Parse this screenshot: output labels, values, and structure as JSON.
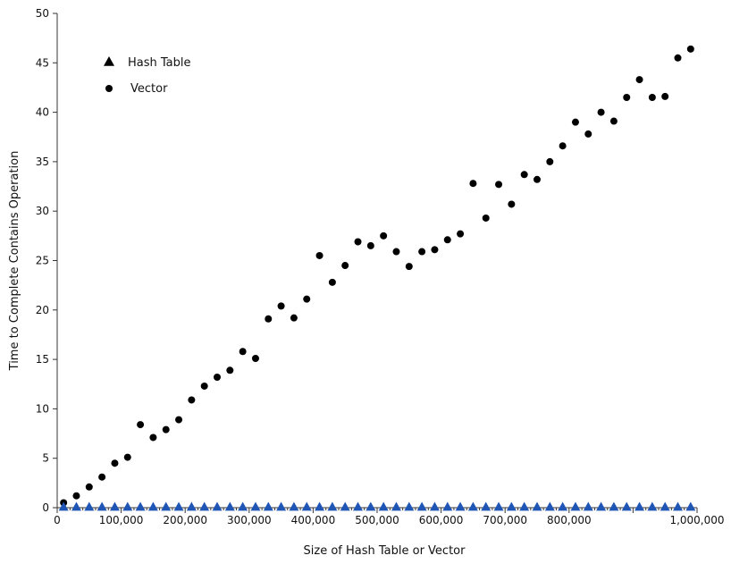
{
  "chart_data": {
    "type": "scatter",
    "xlabel": "Size of Hash Table or Vector",
    "ylabel": "Time to Complete Contains Operation",
    "xlim": [
      0,
      1000000
    ],
    "ylim": [
      0,
      50
    ],
    "x_tick_labels": [
      {
        "value": 0,
        "label": "0"
      },
      {
        "value": 100000,
        "label": "100,000"
      },
      {
        "value": 200000,
        "label": "200,000"
      },
      {
        "value": 300000,
        "label": "300,000"
      },
      {
        "value": 400000,
        "label": "400,000"
      },
      {
        "value": 500000,
        "label": "500,000"
      },
      {
        "value": 600000,
        "label": "600,000"
      },
      {
        "value": 700000,
        "label": "700,000"
      },
      {
        "value": 800000,
        "label": "800,000"
      },
      {
        "value": 1000000,
        "label": "1,000,000"
      }
    ],
    "y_ticks": [
      0,
      5,
      10,
      15,
      20,
      25,
      30,
      35,
      40,
      45,
      50
    ],
    "legend_position": "top-left",
    "series": [
      {
        "name": "Hash Table",
        "marker": "triangle",
        "color": "#1f55b5",
        "legend_color": "#000000",
        "x": [
          10000,
          30000,
          50000,
          70000,
          90000,
          110000,
          130000,
          150000,
          170000,
          190000,
          210000,
          230000,
          250000,
          270000,
          290000,
          310000,
          330000,
          350000,
          370000,
          390000,
          410000,
          430000,
          450000,
          470000,
          490000,
          510000,
          530000,
          550000,
          570000,
          590000,
          610000,
          630000,
          650000,
          670000,
          690000,
          710000,
          730000,
          750000,
          770000,
          790000,
          810000,
          830000,
          850000,
          870000,
          890000,
          910000,
          930000,
          950000,
          970000,
          990000
        ],
        "y": [
          0,
          0,
          0,
          0,
          0,
          0,
          0,
          0,
          0,
          0,
          0,
          0,
          0,
          0,
          0,
          0,
          0,
          0,
          0,
          0,
          0,
          0,
          0,
          0,
          0,
          0,
          0,
          0,
          0,
          0,
          0,
          0,
          0,
          0,
          0,
          0,
          0,
          0,
          0,
          0,
          0,
          0,
          0,
          0,
          0,
          0,
          0,
          0,
          0,
          0
        ]
      },
      {
        "name": "Vector",
        "marker": "circle",
        "color": "#000000",
        "x": [
          10000,
          30000,
          50000,
          70000,
          90000,
          110000,
          130000,
          150000,
          170000,
          190000,
          210000,
          230000,
          250000,
          270000,
          290000,
          310000,
          330000,
          350000,
          370000,
          390000,
          410000,
          430000,
          450000,
          470000,
          490000,
          510000,
          530000,
          550000,
          570000,
          590000,
          610000,
          630000,
          650000,
          670000,
          690000,
          710000,
          730000,
          750000,
          770000,
          790000,
          810000,
          830000,
          850000,
          870000,
          890000,
          910000,
          930000,
          950000,
          970000,
          990000
        ],
        "y": [
          0.5,
          1.2,
          2.1,
          3.1,
          4.5,
          5.1,
          8.4,
          7.1,
          7.9,
          8.9,
          10.9,
          12.3,
          13.2,
          13.9,
          15.8,
          15.1,
          19.1,
          20.4,
          19.2,
          21.1,
          25.5,
          22.8,
          24.5,
          26.9,
          26.5,
          27.5,
          25.9,
          24.4,
          25.9,
          26.1,
          27.1,
          27.7,
          32.8,
          29.3,
          32.7,
          30.7,
          33.7,
          33.2,
          35.0,
          36.6,
          39.0,
          37.8,
          40.0,
          39.1,
          41.5,
          43.3,
          41.5,
          41.6,
          45.5,
          46.4
        ]
      }
    ]
  }
}
